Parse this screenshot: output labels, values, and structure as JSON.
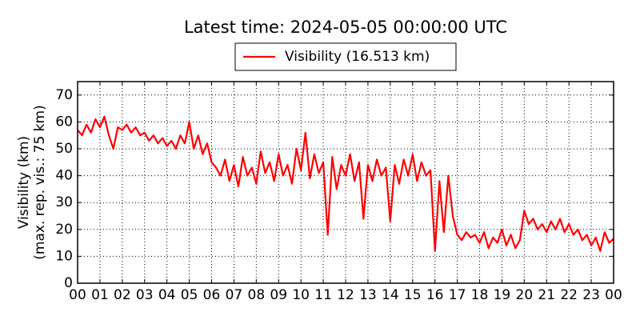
{
  "chart_data": {
    "type": "line",
    "title": "Latest time: 2024-05-05 00:00:00 UTC",
    "ylabel": [
      "Visibility (km)",
      "(max. rep. vis.: 75 km)"
    ],
    "x": [
      0,
      0.2,
      0.4,
      0.6,
      0.8,
      1,
      1.2,
      1.4,
      1.6,
      1.8,
      2,
      2.2,
      2.4,
      2.6,
      2.8,
      3,
      3.2,
      3.4,
      3.6,
      3.8,
      4,
      4.2,
      4.4,
      4.6,
      4.8,
      5,
      5.2,
      5.4,
      5.6,
      5.8,
      6,
      6.2,
      6.4,
      6.6,
      6.8,
      7,
      7.2,
      7.4,
      7.6,
      7.8,
      8,
      8.2,
      8.4,
      8.6,
      8.8,
      9,
      9.2,
      9.4,
      9.6,
      9.8,
      10,
      10.2,
      10.4,
      10.6,
      10.8,
      11,
      11.2,
      11.4,
      11.6,
      11.8,
      12,
      12.2,
      12.4,
      12.6,
      12.8,
      13,
      13.2,
      13.4,
      13.6,
      13.8,
      14,
      14.2,
      14.4,
      14.6,
      14.8,
      15,
      15.2,
      15.4,
      15.6,
      15.8,
      16,
      16.2,
      16.4,
      16.6,
      16.8,
      17,
      17.2,
      17.4,
      17.6,
      17.8,
      18,
      18.2,
      18.4,
      18.6,
      18.8,
      19,
      19.2,
      19.4,
      19.6,
      19.8,
      20,
      20.2,
      20.4,
      20.6,
      20.8,
      21,
      21.2,
      21.4,
      21.6,
      21.8,
      22,
      22.2,
      22.4,
      22.6,
      22.8,
      23,
      23.2,
      23.4,
      23.6,
      23.8,
      24
    ],
    "series": [
      {
        "name": "Visibility (16.513 km)",
        "color": "#ff0000",
        "values": [
          57,
          55,
          59,
          56,
          61,
          58,
          62,
          55,
          50,
          58,
          57,
          59,
          56,
          58,
          55,
          56,
          53,
          55,
          52,
          54,
          51,
          53,
          50,
          55,
          52,
          60,
          50,
          55,
          48,
          52,
          45,
          43,
          40,
          46,
          38,
          44,
          36,
          47,
          40,
          43,
          37,
          49,
          41,
          45,
          38,
          48,
          40,
          44,
          37,
          50,
          42,
          56,
          39,
          48,
          41,
          45,
          18,
          47,
          35,
          44,
          40,
          48,
          38,
          45,
          24,
          44,
          38,
          46,
          40,
          43,
          23,
          44,
          37,
          46,
          40,
          48,
          38,
          45,
          40,
          42,
          12,
          38,
          19,
          40,
          25,
          18,
          16,
          19,
          17,
          18,
          15,
          19,
          13,
          17,
          15,
          20,
          14,
          18,
          13,
          16,
          27,
          22,
          24,
          20,
          22,
          19,
          23,
          20,
          24,
          19,
          22,
          18,
          20,
          16,
          18,
          14,
          17,
          12,
          19,
          15,
          16.513
        ]
      }
    ],
    "xlim": [
      0,
      24
    ],
    "ylim": [
      0,
      75
    ],
    "xticks": [
      {
        "value": 0,
        "label": "00"
      },
      {
        "value": 1,
        "label": "01"
      },
      {
        "value": 2,
        "label": "02"
      },
      {
        "value": 3,
        "label": "03"
      },
      {
        "value": 4,
        "label": "04"
      },
      {
        "value": 5,
        "label": "05"
      },
      {
        "value": 6,
        "label": "06"
      },
      {
        "value": 7,
        "label": "07"
      },
      {
        "value": 8,
        "label": "08"
      },
      {
        "value": 9,
        "label": "09"
      },
      {
        "value": 10,
        "label": "10"
      },
      {
        "value": 11,
        "label": "11"
      },
      {
        "value": 12,
        "label": "12"
      },
      {
        "value": 13,
        "label": "13"
      },
      {
        "value": 14,
        "label": "14"
      },
      {
        "value": 15,
        "label": "15"
      },
      {
        "value": 16,
        "label": "16"
      },
      {
        "value": 17,
        "label": "17"
      },
      {
        "value": 18,
        "label": "18"
      },
      {
        "value": 19,
        "label": "19"
      },
      {
        "value": 20,
        "label": "20"
      },
      {
        "value": 21,
        "label": "21"
      },
      {
        "value": 22,
        "label": "22"
      },
      {
        "value": 23,
        "label": "23"
      },
      {
        "value": 24,
        "label": "00"
      }
    ],
    "yticks": [
      0,
      10,
      20,
      30,
      40,
      50,
      60,
      70
    ],
    "grid": true,
    "legend": "top"
  }
}
